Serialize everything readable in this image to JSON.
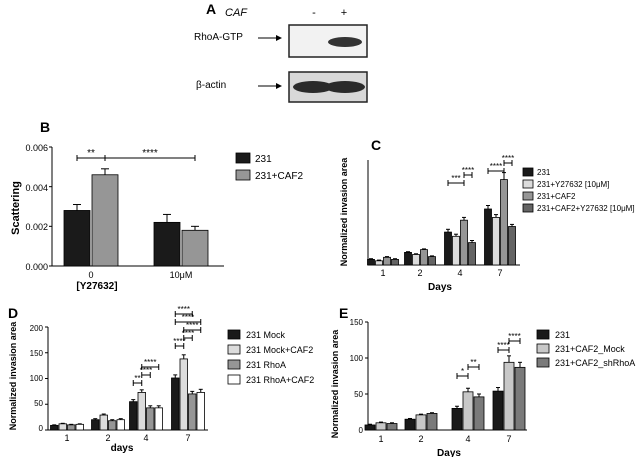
{
  "chart_data": [
    {
      "panel": "A",
      "type": "western-blot",
      "header_label": "CAF",
      "lane_labels": [
        "-",
        "+"
      ],
      "rows": [
        {
          "label": "RhoA-GTP",
          "band_intensity": [
            0.0,
            0.9
          ]
        },
        {
          "label": "β-actin",
          "band_intensity": [
            0.9,
            0.9
          ]
        }
      ]
    },
    {
      "panel": "B",
      "type": "bar",
      "ylabel": "Scattering",
      "xlabel": "[Y27632]",
      "ylim": [
        0,
        0.006
      ],
      "yticks": [
        0.0,
        0.002,
        0.004,
        0.006
      ],
      "ytick_labels": [
        "0.000",
        "0.002",
        "0.004",
        "0.006"
      ],
      "categories": [
        "0",
        "10μM"
      ],
      "series": [
        {
          "name": "231",
          "color": "#1a1a1a",
          "values": [
            0.0028,
            0.0022
          ],
          "errors": [
            0.0003,
            0.0004
          ]
        },
        {
          "name": "231+CAF2",
          "color": "#969696",
          "values": [
            0.0046,
            0.0018
          ],
          "errors": [
            0.0003,
            0.0002
          ]
        }
      ],
      "sig": [
        {
          "label": "**",
          "from": [
            0,
            0
          ],
          "to": [
            0,
            1
          ]
        },
        {
          "label": "****",
          "from": [
            0,
            1
          ],
          "to": [
            1,
            1
          ]
        }
      ]
    },
    {
      "panel": "C",
      "type": "bar",
      "ylabel": "Normalized invasion area",
      "xlabel": "Days",
      "ylim": [
        0,
        150
      ],
      "categories": [
        "1",
        "2",
        "4",
        "7"
      ],
      "series": [
        {
          "name": "231",
          "color": "#1a1a1a",
          "values": [
            8,
            18,
            47,
            80
          ],
          "errors": [
            1,
            1,
            4,
            5
          ]
        },
        {
          "name": "231+Y27632 [10μM]",
          "color": "#dcdcdc",
          "values": [
            6,
            15,
            41,
            68
          ],
          "errors": [
            1,
            1,
            3,
            4
          ]
        },
        {
          "name": "231+CAF2",
          "color": "#969696",
          "values": [
            11,
            22,
            64,
            122
          ],
          "errors": [
            1,
            1,
            4,
            10
          ]
        },
        {
          "name": "231+CAF2+Y27632 [10μM]",
          "color": "#646464",
          "values": [
            8,
            12,
            32,
            55
          ],
          "errors": [
            1,
            1,
            3,
            3
          ]
        }
      ],
      "sig": [
        {
          "label": "***",
          "from": [
            2,
            0
          ],
          "to": [
            2,
            2
          ]
        },
        {
          "label": "****",
          "from": [
            2,
            2
          ],
          "to": [
            2,
            3
          ]
        },
        {
          "label": "****",
          "from": [
            3,
            0
          ],
          "to": [
            3,
            2
          ]
        },
        {
          "label": "****",
          "from": [
            3,
            2
          ],
          "to": [
            3,
            3
          ]
        }
      ]
    },
    {
      "panel": "D",
      "type": "bar",
      "ylabel": "Normalized invasion area",
      "xlabel": "days",
      "ylim": [
        0,
        200
      ],
      "yticks": [
        0,
        50,
        100,
        150,
        200
      ],
      "ytick_labels": [
        "0",
        "50",
        "100",
        "150",
        "200"
      ],
      "categories": [
        "1",
        "2",
        "4",
        "7"
      ],
      "series": [
        {
          "name": "231 Mock",
          "color": "#1a1a1a",
          "values": [
            9,
            20,
            55,
            101
          ],
          "errors": [
            1,
            2,
            4,
            6
          ]
        },
        {
          "name": "231 Mock+CAF2",
          "color": "#dcdcdc",
          "values": [
            12,
            29,
            73,
            138
          ],
          "errors": [
            1,
            2,
            5,
            8
          ]
        },
        {
          "name": "231 RhoA",
          "color": "#969696",
          "values": [
            10,
            18,
            43,
            70
          ],
          "errors": [
            1,
            2,
            4,
            5
          ]
        },
        {
          "name": "231 RhoA+CAF2",
          "color": "#ffffff",
          "values": [
            11,
            20,
            43,
            73
          ],
          "errors": [
            1,
            2,
            4,
            6
          ]
        }
      ],
      "sig": [
        {
          "label": "**",
          "from": [
            2,
            0
          ],
          "to": [
            2,
            1
          ]
        },
        {
          "label": "****",
          "from": [
            2,
            1
          ],
          "to": [
            2,
            2
          ]
        },
        {
          "label": "****",
          "from": [
            2,
            1
          ],
          "to": [
            2,
            3
          ]
        },
        {
          "label": "****",
          "from": [
            3,
            0
          ],
          "to": [
            3,
            1
          ]
        },
        {
          "label": "****",
          "from": [
            3,
            1
          ],
          "to": [
            3,
            2
          ]
        },
        {
          "label": "****",
          "from": [
            3,
            1
          ],
          "to": [
            3,
            3
          ]
        },
        {
          "label": "****",
          "from": [
            3,
            0
          ],
          "to": [
            3,
            3
          ]
        },
        {
          "label": "****",
          "from": [
            3,
            0
          ],
          "to": [
            3,
            2
          ]
        }
      ]
    },
    {
      "panel": "E",
      "type": "bar",
      "ylabel": "Normalized invasion area",
      "xlabel": "Days",
      "ylim": [
        0,
        150
      ],
      "yticks": [
        0,
        50,
        100,
        150
      ],
      "ytick_labels": [
        "0",
        "50",
        "100",
        "150"
      ],
      "categories": [
        "1",
        "2",
        "4",
        "7"
      ],
      "series": [
        {
          "name": "231",
          "color": "#1a1a1a",
          "values": [
            7,
            15,
            30,
            54
          ],
          "errors": [
            1,
            1,
            3,
            5
          ]
        },
        {
          "name": "231+CAF2_Mock",
          "color": "#c8c8c8",
          "values": [
            10,
            21,
            53,
            94
          ],
          "errors": [
            1,
            1,
            5,
            9
          ]
        },
        {
          "name": "231+CAF2_shRhoA",
          "color": "#7a7a7a",
          "values": [
            9,
            23,
            46,
            87
          ],
          "errors": [
            1,
            1,
            4,
            7
          ]
        }
      ],
      "sig": [
        {
          "label": "*",
          "from": [
            2,
            0
          ],
          "to": [
            2,
            1
          ]
        },
        {
          "label": "**",
          "from": [
            2,
            1
          ],
          "to": [
            2,
            2
          ]
        },
        {
          "label": "****",
          "from": [
            3,
            0
          ],
          "to": [
            3,
            1
          ]
        },
        {
          "label": "****",
          "from": [
            3,
            1
          ],
          "to": [
            3,
            2
          ]
        }
      ]
    }
  ]
}
